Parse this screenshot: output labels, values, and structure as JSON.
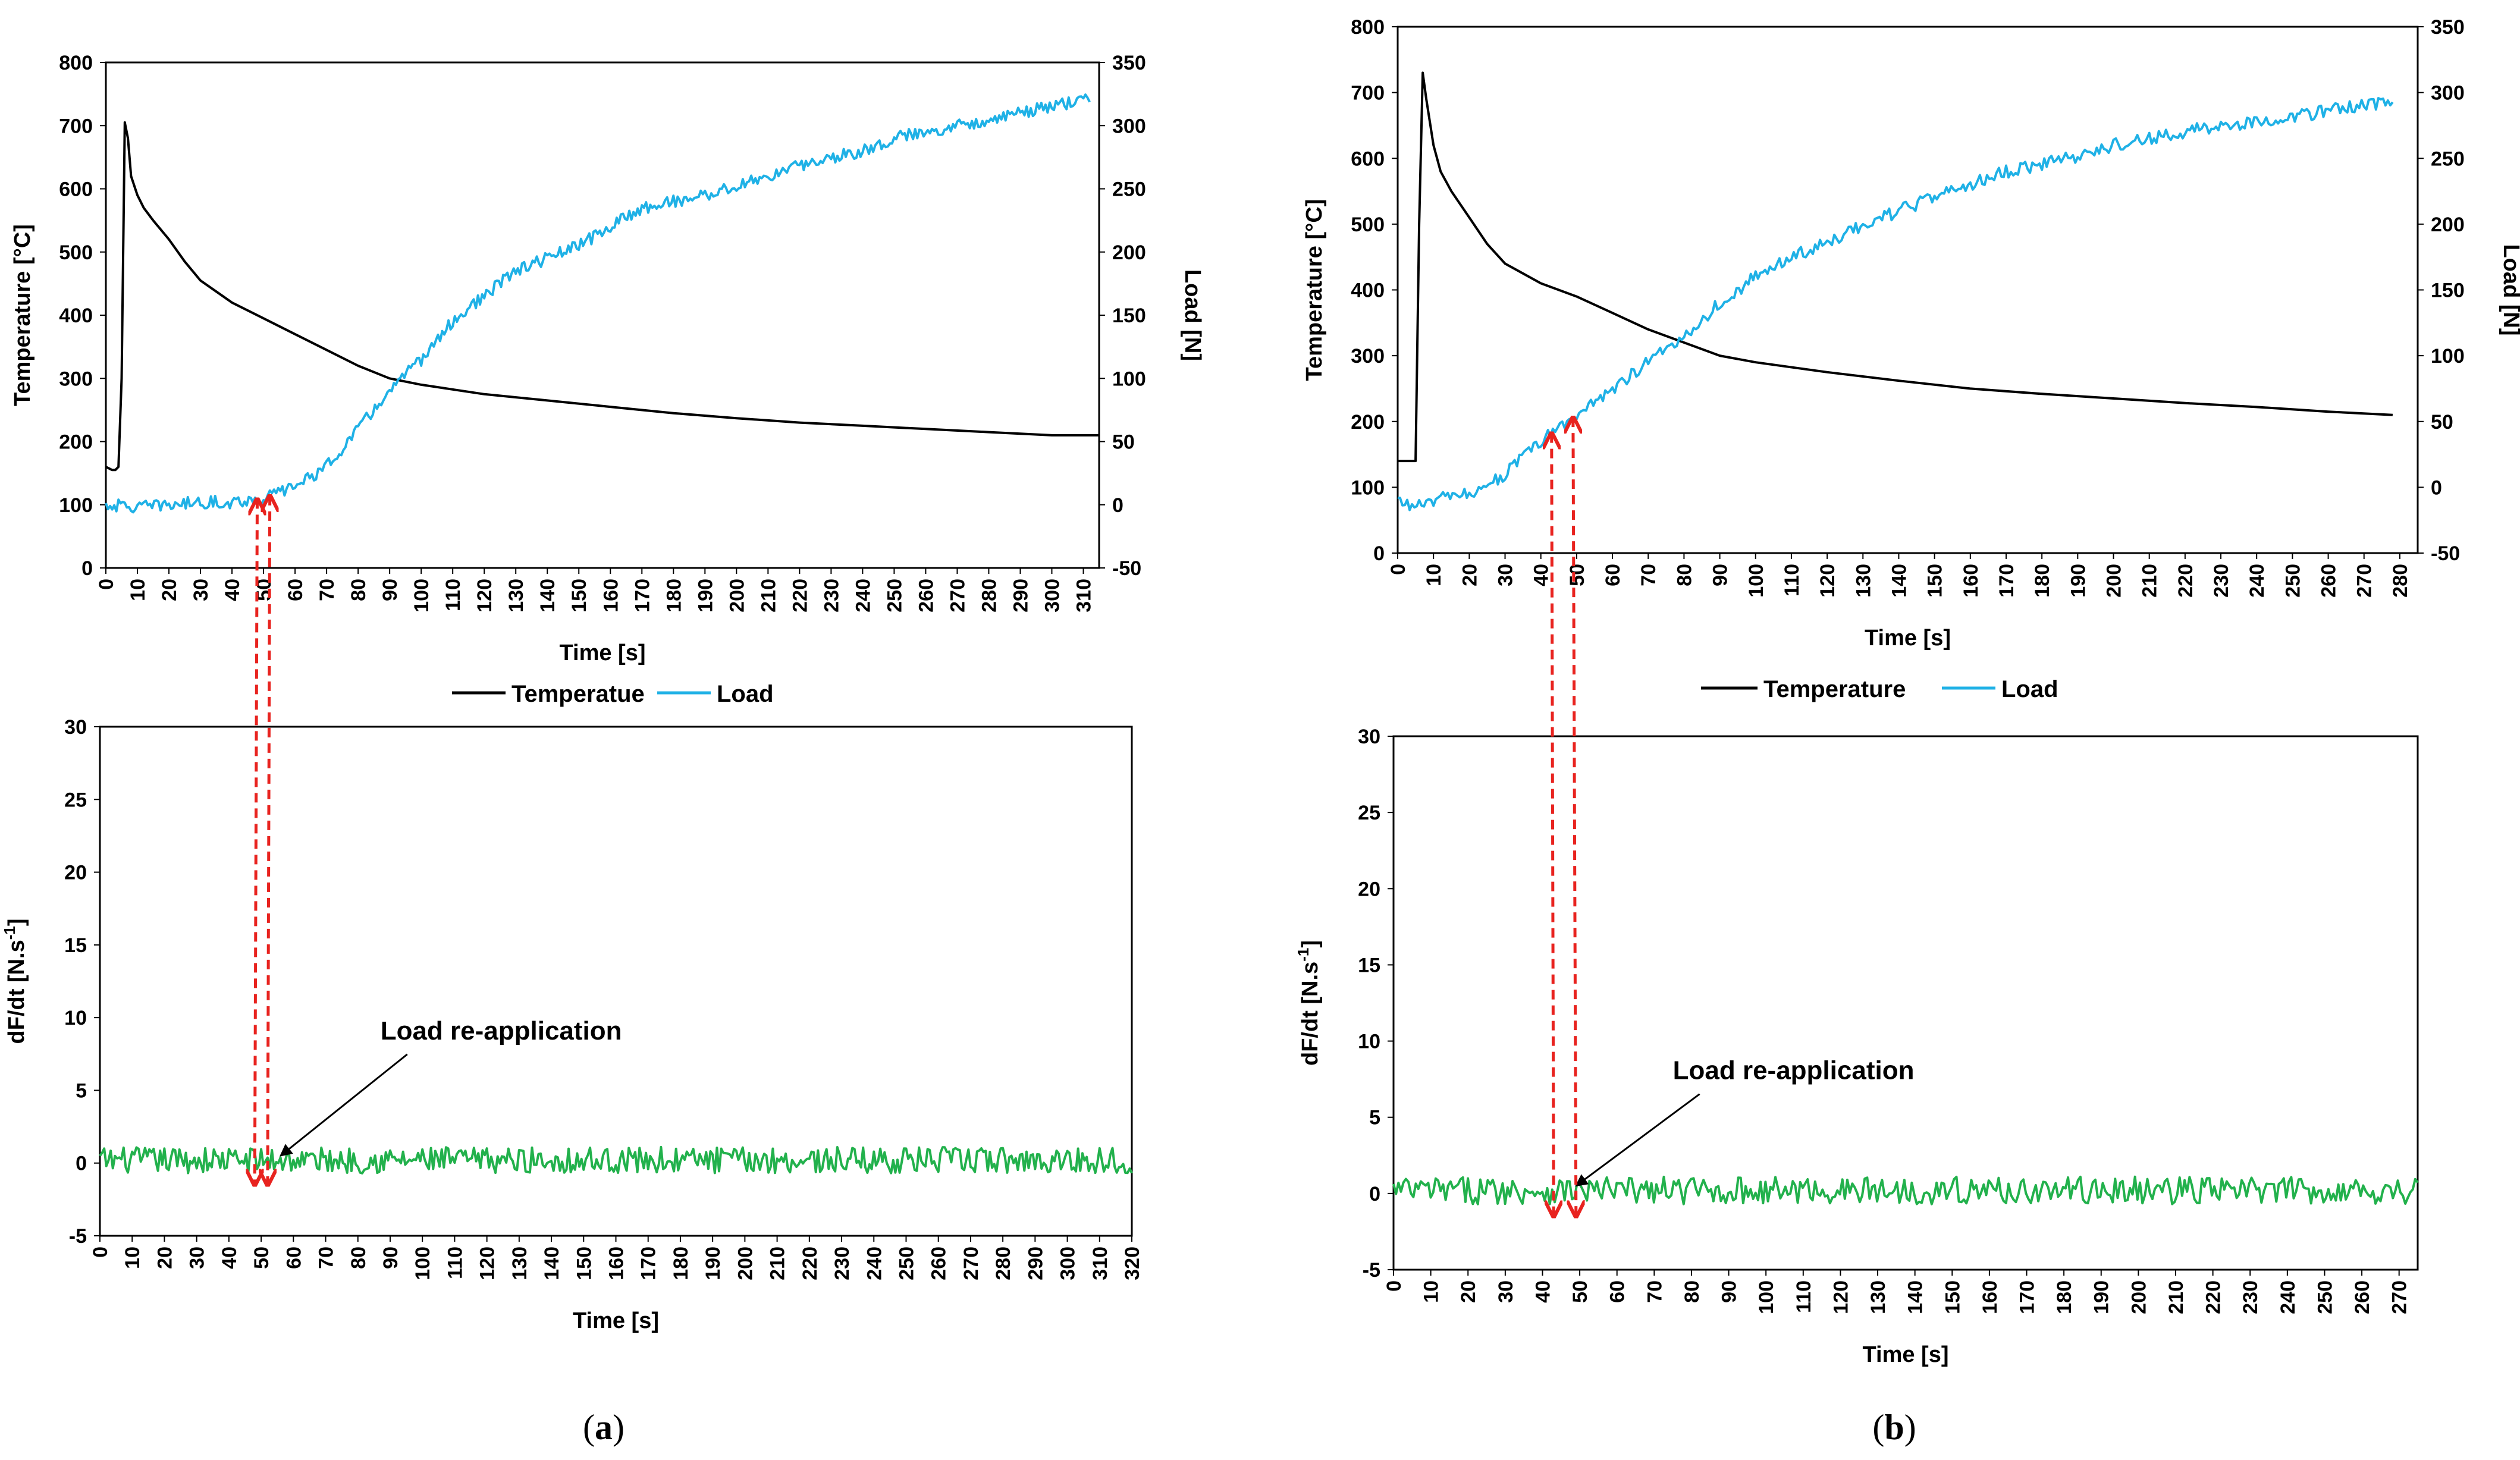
{
  "chart_data": [
    {
      "id": "a_top",
      "type": "line",
      "panel": "a",
      "xlabel": "Time [s]",
      "ylabel": "Temperature [°C]",
      "y2label": "Load [N]",
      "xlim": [
        0,
        315
      ],
      "xticks": [
        0,
        10,
        20,
        30,
        40,
        50,
        60,
        70,
        80,
        90,
        100,
        110,
        120,
        130,
        140,
        150,
        160,
        170,
        180,
        190,
        200,
        210,
        220,
        230,
        240,
        250,
        260,
        270,
        280,
        290,
        300,
        310
      ],
      "ylim": [
        0,
        800
      ],
      "yticks": [
        0,
        100,
        200,
        300,
        400,
        500,
        600,
        700,
        800
      ],
      "y2lim": [
        -50,
        350
      ],
      "y2ticks": [
        -50,
        0,
        50,
        100,
        150,
        200,
        250,
        300,
        350
      ],
      "legend_position": "bottom-center",
      "series": [
        {
          "name": "Temperatue",
          "axis": "left",
          "color": "#000000",
          "x": [
            0,
            2,
            3,
            4,
            5,
            6,
            7,
            8,
            10,
            12,
            15,
            20,
            25,
            30,
            40,
            50,
            60,
            70,
            80,
            90,
            100,
            120,
            140,
            160,
            180,
            200,
            220,
            240,
            260,
            280,
            300,
            315
          ],
          "y": [
            160,
            155,
            155,
            160,
            300,
            705,
            680,
            620,
            590,
            570,
            550,
            520,
            485,
            455,
            420,
            395,
            370,
            345,
            320,
            300,
            290,
            275,
            265,
            255,
            245,
            237,
            230,
            225,
            220,
            215,
            210,
            210
          ]
        },
        {
          "name": "Load",
          "axis": "right",
          "color": "#1fb1e6",
          "x": [
            0,
            10,
            20,
            30,
            40,
            50,
            55,
            60,
            70,
            80,
            90,
            100,
            110,
            120,
            130,
            140,
            150,
            160,
            170,
            180,
            190,
            200,
            210,
            220,
            230,
            240,
            250,
            260,
            270,
            280,
            290,
            300,
            310,
            312
          ],
          "y": [
            0,
            -2,
            0,
            2,
            2,
            5,
            10,
            15,
            30,
            60,
            90,
            115,
            145,
            165,
            185,
            195,
            205,
            220,
            235,
            240,
            245,
            252,
            260,
            268,
            275,
            280,
            290,
            295,
            300,
            305,
            310,
            315,
            320,
            322
          ],
          "noise": 5
        }
      ],
      "markers": [
        {
          "type": "double-arrow",
          "x": 48,
          "color": "#e8231f"
        },
        {
          "type": "double-arrow",
          "x": 52,
          "color": "#e8231f"
        }
      ]
    },
    {
      "id": "a_bottom",
      "type": "line",
      "panel": "a",
      "xlabel": "Time [s]",
      "ylabel": "dF/dt [N.s",
      "ylabel_sup": "-1",
      "ylabel_end": "]",
      "xlim": [
        0,
        320
      ],
      "xticks": [
        0,
        10,
        20,
        30,
        40,
        50,
        60,
        70,
        80,
        90,
        100,
        110,
        120,
        130,
        140,
        150,
        160,
        170,
        180,
        190,
        200,
        210,
        220,
        230,
        240,
        250,
        260,
        270,
        280,
        290,
        300,
        310,
        320
      ],
      "ylim": [
        -5,
        30
      ],
      "yticks": [
        -5,
        0,
        5,
        10,
        15,
        20,
        25,
        30
      ],
      "series": [
        {
          "name": "dF/dt",
          "color": "#22b14c",
          "x": [
            0,
            320
          ],
          "y": [
            0.2,
            0.2
          ],
          "noise": 0.9
        }
      ],
      "annotations": [
        {
          "text": "Load re-application",
          "arrow_to": [
            56,
            0.5
          ],
          "text_at": [
            87,
            8.5
          ]
        }
      ]
    },
    {
      "id": "b_top",
      "type": "line",
      "panel": "b",
      "xlabel": "Time [s]",
      "ylabel": "Temperature [°C]",
      "y2label": "Load [N]",
      "xlim": [
        0,
        285
      ],
      "xticks": [
        0,
        10,
        20,
        30,
        40,
        50,
        60,
        70,
        80,
        90,
        100,
        110,
        120,
        130,
        140,
        150,
        160,
        170,
        180,
        190,
        200,
        210,
        220,
        230,
        240,
        250,
        260,
        270,
        280
      ],
      "ylim": [
        0,
        800
      ],
      "yticks": [
        0,
        100,
        200,
        300,
        400,
        500,
        600,
        700,
        800
      ],
      "y2lim": [
        -50,
        350
      ],
      "y2ticks": [
        -50,
        0,
        50,
        100,
        150,
        200,
        250,
        300,
        350
      ],
      "legend_position": "bottom-center",
      "series": [
        {
          "name": "Temperature",
          "axis": "left",
          "color": "#000000",
          "x": [
            0,
            4,
            5,
            6,
            7,
            8,
            10,
            12,
            15,
            20,
            25,
            30,
            40,
            50,
            60,
            70,
            80,
            90,
            100,
            120,
            140,
            160,
            180,
            200,
            220,
            240,
            260,
            278
          ],
          "y": [
            140,
            140,
            140,
            500,
            730,
            690,
            620,
            580,
            550,
            510,
            470,
            440,
            410,
            390,
            365,
            340,
            320,
            300,
            290,
            275,
            262,
            250,
            242,
            235,
            228,
            222,
            215,
            210
          ]
        },
        {
          "name": "Load",
          "axis": "right",
          "color": "#1fb1e6",
          "x": [
            0,
            5,
            10,
            20,
            30,
            40,
            45,
            50,
            60,
            70,
            80,
            90,
            100,
            110,
            120,
            130,
            140,
            150,
            160,
            170,
            180,
            190,
            200,
            210,
            220,
            230,
            240,
            250,
            260,
            270,
            278
          ],
          "y": [
            -10,
            -15,
            -10,
            -5,
            10,
            35,
            45,
            55,
            75,
            95,
            115,
            140,
            160,
            175,
            185,
            200,
            210,
            220,
            230,
            240,
            245,
            252,
            260,
            265,
            270,
            275,
            278,
            282,
            286,
            290,
            295
          ],
          "noise": 5
        }
      ],
      "markers": [
        {
          "type": "double-arrow",
          "x": 43,
          "color": "#e8231f"
        },
        {
          "type": "double-arrow",
          "x": 49,
          "color": "#e8231f"
        }
      ]
    },
    {
      "id": "b_bottom",
      "type": "line",
      "panel": "b",
      "xlabel": "Time [s]",
      "ylabel": "dF/dt [N.s",
      "ylabel_sup": "-1",
      "ylabel_end": "]",
      "xlim": [
        0,
        275
      ],
      "xticks": [
        0,
        10,
        20,
        30,
        40,
        50,
        60,
        70,
        80,
        90,
        100,
        110,
        120,
        130,
        140,
        150,
        160,
        170,
        180,
        190,
        200,
        210,
        220,
        230,
        240,
        250,
        260,
        270
      ],
      "ylim": [
        -5,
        30
      ],
      "yticks": [
        -5,
        0,
        5,
        10,
        15,
        20,
        25,
        30
      ],
      "series": [
        {
          "name": "dF/dt",
          "color": "#22b14c",
          "x": [
            0,
            275
          ],
          "y": [
            0.2,
            0.2
          ],
          "noise": 0.9
        }
      ],
      "annotations": [
        {
          "text": "Load re-application",
          "arrow_to": [
            49,
            0.5
          ],
          "text_at": [
            75,
            7.5
          ]
        }
      ]
    }
  ],
  "panel_labels": [
    {
      "open": "(",
      "letter": "a",
      "close": ")"
    },
    {
      "open": "(",
      "letter": "b",
      "close": ")"
    }
  ]
}
